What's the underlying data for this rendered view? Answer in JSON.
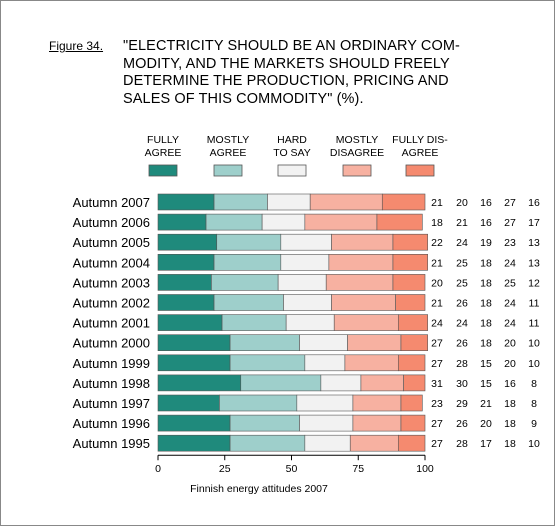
{
  "figure_label": "Figure 34.",
  "title_lines": [
    "\"ELECTRICITY SHOULD BE AN ORDINARY COM-",
    "MODITY, AND THE MARKETS SHOULD FREELY",
    "DETERMINE THE PRODUCTION, PRICING AND",
    "SALES OF THIS COMMODITY\" (%)."
  ],
  "footer": "Finnish energy attitudes 2007",
  "chart_data": {
    "type": "bar",
    "stacked": true,
    "orientation": "horizontal",
    "title": "\"ELECTRICITY SHOULD BE AN ORDINARY COMMODITY, AND THE MARKETS SHOULD FREELY DETERMINE THE PRODUCTION, PRICING AND SALES OF THIS COMMODITY\" (%).",
    "xlabel": "",
    "ylabel": "",
    "xlim": [
      0,
      100
    ],
    "x_ticks": [
      "0",
      "25",
      "50",
      "75",
      "100"
    ],
    "legend_position": "top",
    "categories": [
      "Autumn 2007",
      "Autumn 2006",
      "Autumn 2005",
      "Autumn 2004",
      "Autumn 2003",
      "Autumn 2002",
      "Autumn 2001",
      "Autumn 2000",
      "Autumn 1999",
      "Autumn 1998",
      "Autumn 1997",
      "Autumn 1996",
      "Autumn 1995"
    ],
    "series": [
      {
        "name": "FULLY AGREE",
        "label_lines": [
          "FULLY",
          "AGREE"
        ],
        "color": "#1f8a7c",
        "values": [
          21,
          18,
          22,
          21,
          20,
          21,
          24,
          27,
          27,
          31,
          23,
          27,
          27
        ]
      },
      {
        "name": "MOSTLY AGREE",
        "label_lines": [
          "MOSTLY",
          "AGREE"
        ],
        "color": "#9ecfcb",
        "values": [
          20,
          21,
          24,
          25,
          25,
          26,
          24,
          26,
          28,
          30,
          29,
          26,
          28
        ]
      },
      {
        "name": "HARD TO SAY",
        "label_lines": [
          "HARD",
          "TO SAY"
        ],
        "color": "#f2f2f2",
        "values": [
          16,
          16,
          19,
          18,
          18,
          18,
          18,
          18,
          15,
          15,
          21,
          20,
          17
        ]
      },
      {
        "name": "MOSTLY DISAGREE",
        "label_lines": [
          "MOSTLY",
          "DISAGREE"
        ],
        "color": "#f7b1a1",
        "values": [
          27,
          27,
          23,
          24,
          25,
          24,
          24,
          20,
          20,
          16,
          18,
          18,
          18
        ]
      },
      {
        "name": "FULLY DISAGREE",
        "label_lines": [
          "FULLY DIS-",
          "AGREE"
        ],
        "color": "#f58a6f",
        "values": [
          16,
          17,
          13,
          13,
          12,
          11,
          11,
          10,
          10,
          8,
          8,
          9,
          10
        ]
      }
    ]
  }
}
